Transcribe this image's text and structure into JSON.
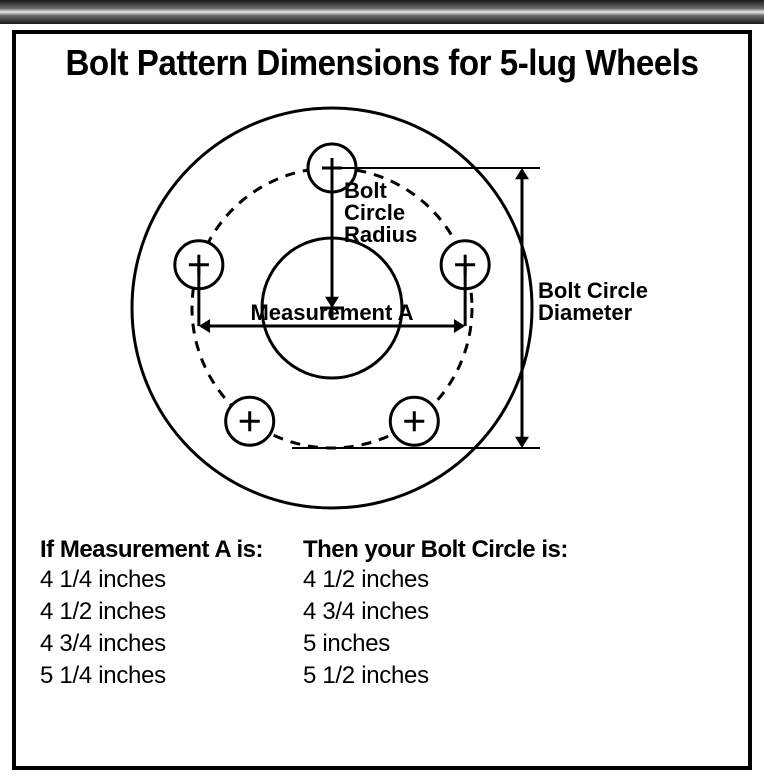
{
  "title": "Bolt Pattern Dimensions for 5-lug Wheels",
  "title_fontsize": 36,
  "title_color": "#000000",
  "background_color": "#ffffff",
  "frame_border_color": "#000000",
  "frame_border_width": 4,
  "diagram": {
    "type": "infographic",
    "outer_circle_radius": 200,
    "hub_circle_radius": 70,
    "bolt_circle_radius": 140,
    "lug_radius": 24,
    "lug_count": 5,
    "lug_start_angle_deg": 90,
    "stroke_color": "#000000",
    "stroke_width_outer": 3,
    "stroke_width_bolt_circle": 3,
    "dash_pattern": "10,8",
    "labels": {
      "bolt_circle_radius": "Bolt\nCircle\nRadius",
      "measurement_a": "Measurement A",
      "bolt_circle_diameter": "Bolt Circle\nDiameter"
    },
    "label_fontsize": 22,
    "arrow_stroke_width": 3
  },
  "tables": {
    "header_fontsize": 24,
    "row_fontsize": 24,
    "row_lineheight": 32,
    "left": {
      "header": "If Measurement A is:",
      "rows": [
        "4 1/4 inches",
        "4 1/2 inches",
        "4 3/4 inches",
        "5 1/4 inches"
      ]
    },
    "right": {
      "header": "Then your Bolt Circle is:",
      "rows": [
        "4 1/2 inches",
        "4 3/4 inches",
        "5 inches",
        "5 1/2 inches"
      ]
    }
  }
}
